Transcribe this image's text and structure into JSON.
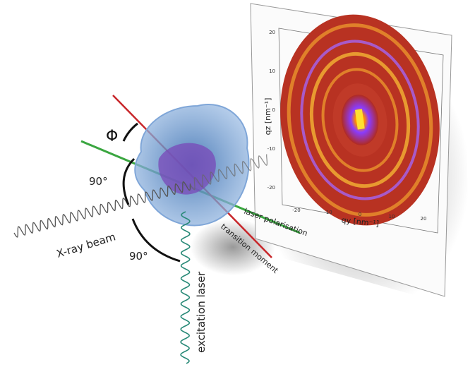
{
  "labels": {
    "phi": "Φ",
    "angle_top": "90°",
    "angle_bottom": "90°",
    "xray": "X-ray beam",
    "excitation": "excitation laser",
    "polarisation": "laser polarisation",
    "transition": "transition moment"
  },
  "detector": {
    "x_label": "qy [nm⁻¹]",
    "y_label": "qz [nm⁻¹]",
    "x_ticks": [
      "-20",
      "-10",
      "0",
      "10",
      "20"
    ],
    "y_ticks": [
      "20",
      "10",
      "0",
      "-10",
      "-20"
    ]
  }
}
